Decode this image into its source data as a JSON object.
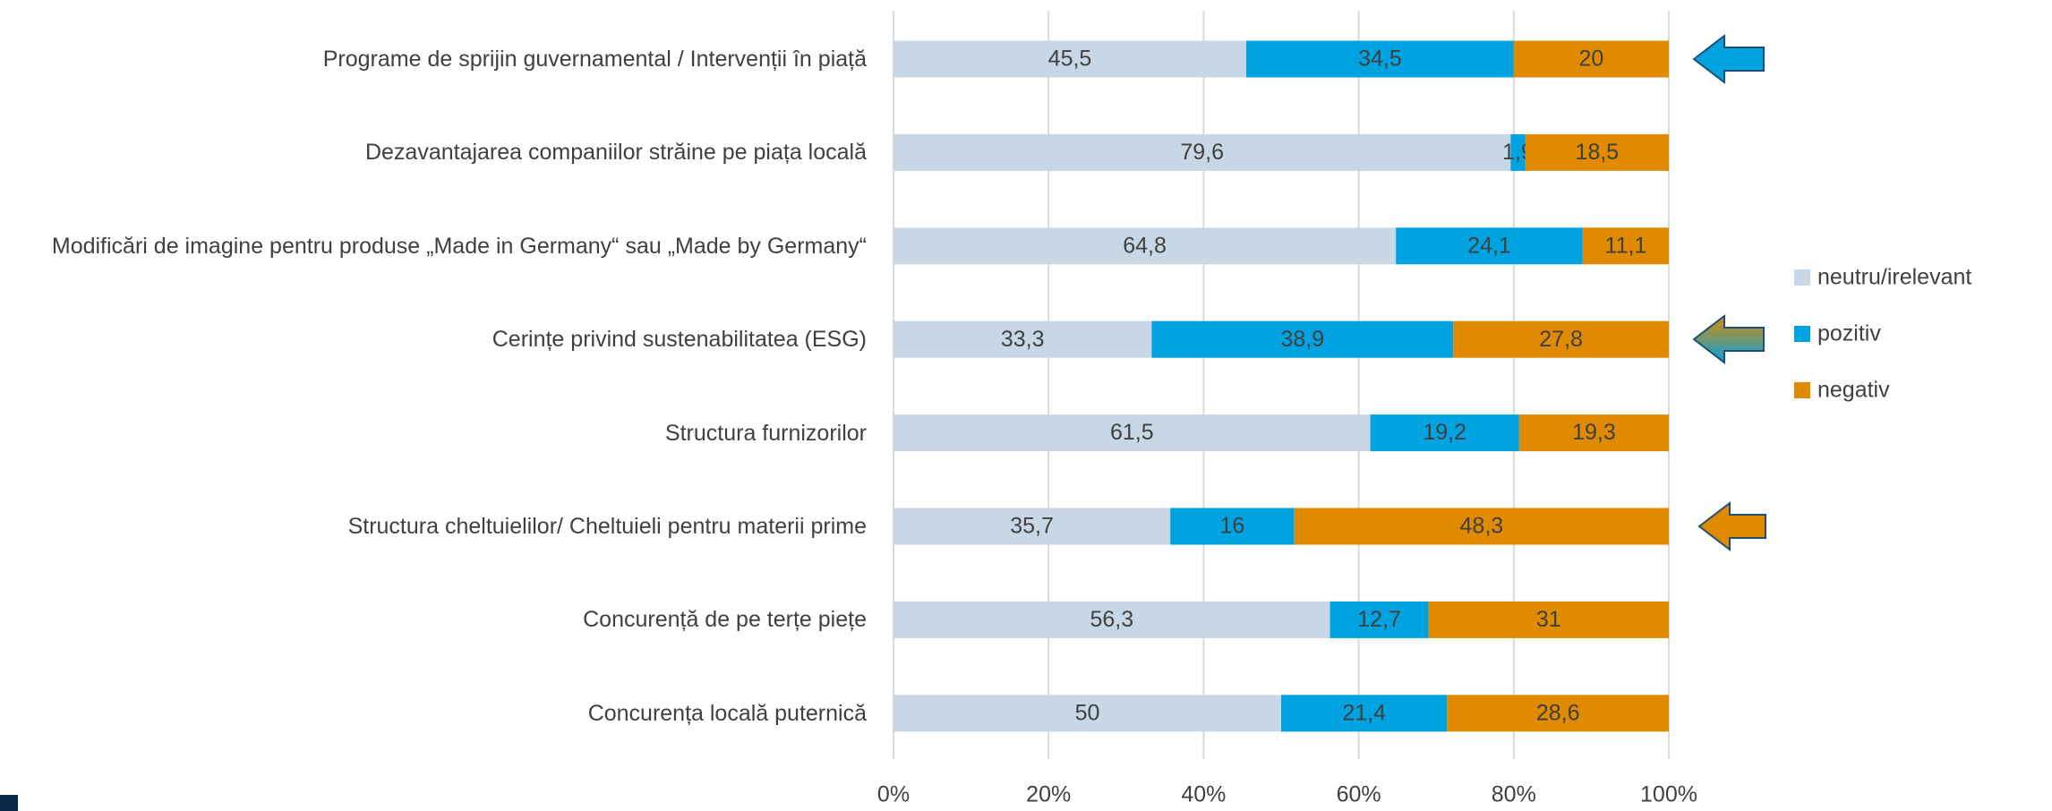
{
  "chart_data": {
    "type": "stacked_bar_horizontal",
    "categories": [
      "Programe de sprijin guvernamental / Intervenții în piață",
      "Dezavantajarea companiilor străine pe piața locală",
      "Modificări de imagine pentru produse „Made in Germany“ sau „Made by Germany“",
      "Cerințe privind sustenabilitatea (ESG)",
      "Structura furnizorilor",
      "Structura cheltuielilor/ Cheltuieli pentru materii prime",
      "Concurență de pe terțe piețe",
      "Concurența locală puternică"
    ],
    "series": [
      {
        "name": "neutru/irelevant",
        "color": "#c8d7e6",
        "values": [
          45.5,
          79.6,
          64.8,
          33.3,
          61.5,
          35.7,
          56.3,
          50
        ],
        "value_labels": [
          "45,5",
          "79,6",
          "64,8",
          "33,3",
          "61,5",
          "35,7",
          "56,3",
          "50"
        ]
      },
      {
        "name": "pozitiv",
        "color": "#00a3e0",
        "values": [
          34.5,
          1.9,
          24.1,
          38.9,
          19.2,
          16,
          12.7,
          21.4
        ],
        "value_labels": [
          "34,5",
          "1,9",
          "24,1",
          "38,9",
          "19,2",
          "16",
          "12,7",
          "21,4"
        ]
      },
      {
        "name": "negativ",
        "color": "#e08a00",
        "values": [
          20,
          18.5,
          11.1,
          27.8,
          19.3,
          48.3,
          31,
          28.6
        ],
        "value_labels": [
          "20",
          "18,5",
          "11,1",
          "27,8",
          "19,3",
          "48,3",
          "31",
          "28,6"
        ]
      }
    ],
    "xlim": [
      0,
      100
    ],
    "xticks": [
      {
        "value": 0,
        "label": "0%"
      },
      {
        "value": 20,
        "label": "20%"
      },
      {
        "value": 40,
        "label": "40%"
      },
      {
        "value": 60,
        "label": "60%"
      },
      {
        "value": 80,
        "label": "80%"
      },
      {
        "value": 100,
        "label": "100%"
      }
    ],
    "grid": true,
    "legend": "right"
  }
}
